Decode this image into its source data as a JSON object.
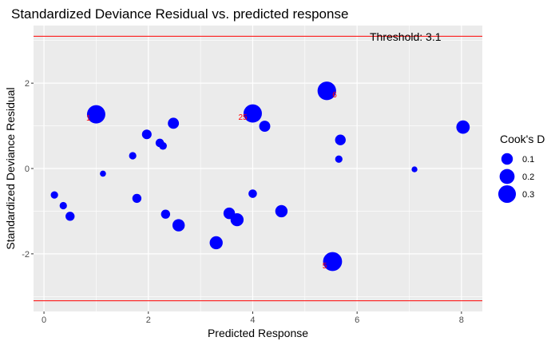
{
  "chart_data": {
    "type": "scatter",
    "title": "Standardized Deviance Residual vs. predicted response",
    "xlabel": "Predicted Response",
    "ylabel": "Standardized Deviance Residual",
    "xlim": [
      -0.2,
      8.4
    ],
    "ylim": [
      -3.35,
      3.35
    ],
    "x_ticks": [
      0,
      2,
      4,
      6,
      8
    ],
    "y_ticks": [
      -2,
      0,
      2
    ],
    "grid": true,
    "threshold": {
      "value": 3.1,
      "label": "Threshold: 3.1",
      "color": "#ff0000"
    },
    "point_color": "#0000ff",
    "legend": {
      "title": "Cook's D",
      "position": "right",
      "entries": [
        {
          "label": "0.1",
          "value": 0.1
        },
        {
          "label": "0.2",
          "value": 0.2
        },
        {
          "label": "0.3",
          "value": 0.3
        }
      ]
    },
    "points": [
      {
        "x": 1.0,
        "y": 1.27,
        "cooks_d": 0.33,
        "label": "1"
      },
      {
        "x": 4.0,
        "y": 1.29,
        "cooks_d": 0.33,
        "label": "25"
      },
      {
        "x": 5.42,
        "y": 1.82,
        "cooks_d": 0.34,
        "label": "6"
      },
      {
        "x": 5.53,
        "y": -2.18,
        "cooks_d": 0.36,
        "label": "5"
      },
      {
        "x": 0.2,
        "y": -0.62,
        "cooks_d": 0.025,
        "label": ""
      },
      {
        "x": 0.37,
        "y": -0.87,
        "cooks_d": 0.025,
        "label": ""
      },
      {
        "x": 0.5,
        "y": -1.12,
        "cooks_d": 0.05,
        "label": ""
      },
      {
        "x": 1.13,
        "y": -0.12,
        "cooks_d": 0.012,
        "label": ""
      },
      {
        "x": 1.7,
        "y": 0.3,
        "cooks_d": 0.025,
        "label": ""
      },
      {
        "x": 1.78,
        "y": -0.7,
        "cooks_d": 0.05,
        "label": ""
      },
      {
        "x": 1.97,
        "y": 0.8,
        "cooks_d": 0.06,
        "label": ""
      },
      {
        "x": 2.22,
        "y": 0.6,
        "cooks_d": 0.04,
        "label": ""
      },
      {
        "x": 2.28,
        "y": 0.53,
        "cooks_d": 0.03,
        "label": ""
      },
      {
        "x": 2.33,
        "y": -1.07,
        "cooks_d": 0.05,
        "label": ""
      },
      {
        "x": 2.48,
        "y": 1.06,
        "cooks_d": 0.09,
        "label": ""
      },
      {
        "x": 2.58,
        "y": -1.33,
        "cooks_d": 0.12,
        "label": ""
      },
      {
        "x": 3.3,
        "y": -1.74,
        "cooks_d": 0.14,
        "label": ""
      },
      {
        "x": 3.55,
        "y": -1.05,
        "cooks_d": 0.1,
        "label": ""
      },
      {
        "x": 3.7,
        "y": -1.2,
        "cooks_d": 0.14,
        "label": ""
      },
      {
        "x": 4.0,
        "y": -0.59,
        "cooks_d": 0.04,
        "label": ""
      },
      {
        "x": 4.23,
        "y": 0.99,
        "cooks_d": 0.09,
        "label": ""
      },
      {
        "x": 4.55,
        "y": -1.0,
        "cooks_d": 0.12,
        "label": ""
      },
      {
        "x": 5.65,
        "y": 0.22,
        "cooks_d": 0.025,
        "label": ""
      },
      {
        "x": 5.68,
        "y": 0.67,
        "cooks_d": 0.08,
        "label": ""
      },
      {
        "x": 7.1,
        "y": -0.02,
        "cooks_d": 0.01,
        "label": ""
      },
      {
        "x": 8.03,
        "y": 0.97,
        "cooks_d": 0.15,
        "label": ""
      }
    ]
  }
}
